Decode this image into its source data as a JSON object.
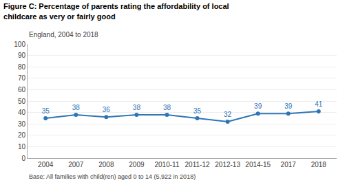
{
  "chart_data": {
    "type": "line",
    "title": "Figure C: Percentage of parents rating the affordability of local childcare as very or fairly good",
    "subtitle": "England, 2004 to 2018",
    "footnote": "Base: All families with child(ren) aged 0 to 14 (5,922 in 2018)",
    "categories": [
      "2004",
      "2007",
      "2008",
      "2009",
      "2010-11",
      "2011-12",
      "2012-13",
      "2014-15",
      "2017",
      "2018"
    ],
    "values": [
      35,
      38,
      36,
      38,
      38,
      35,
      32,
      39,
      39,
      41
    ],
    "color": "#2e75b6",
    "marker": "circle",
    "data_labels": true,
    "ylim": [
      0,
      100
    ],
    "yticks": [
      0,
      10,
      20,
      30,
      40,
      50,
      60,
      70,
      80,
      90,
      100
    ],
    "grid": true
  }
}
